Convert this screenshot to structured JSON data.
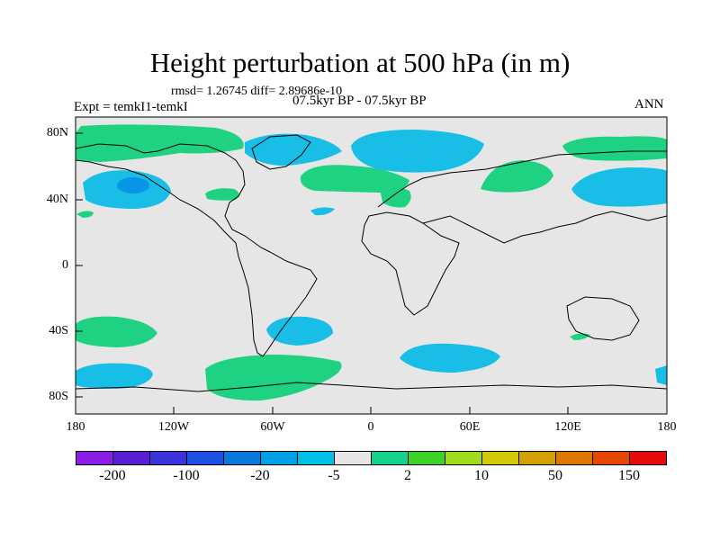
{
  "title": "Height perturbation at 500 hPa (in m)",
  "stats": "rmsd= 1.26745 diff= 2.89686e-10",
  "left_label": "Expt = temkI1-temkI",
  "center_label": "07.5kyr BP - 07.5kyr BP",
  "right_label": "ANN",
  "lat_labels": [
    "80N",
    "40N",
    "0",
    "40S",
    "80S"
  ],
  "lon_labels": [
    "180",
    "120W",
    "60W",
    "0",
    "60E",
    "120E",
    "180"
  ],
  "colorbar": {
    "colors": [
      "#8a1ee6",
      "#5a1ed2",
      "#3c32dc",
      "#1e50e6",
      "#0a78dc",
      "#00a0e6",
      "#00c0e6",
      "#e6e6e6",
      "#14d28c",
      "#3cd228",
      "#a0dc1e",
      "#d2c80a",
      "#d2a000",
      "#dc7800",
      "#e64600",
      "#e60a0a"
    ],
    "labels": [
      "-200",
      "-100",
      "-20",
      "-5",
      "2",
      "10",
      "50",
      "150"
    ]
  },
  "fill_colors": {
    "positive": "#1ed282",
    "negative": "#19bee6",
    "negative_strong": "#0a96e6",
    "background": "#e6e6e6"
  }
}
